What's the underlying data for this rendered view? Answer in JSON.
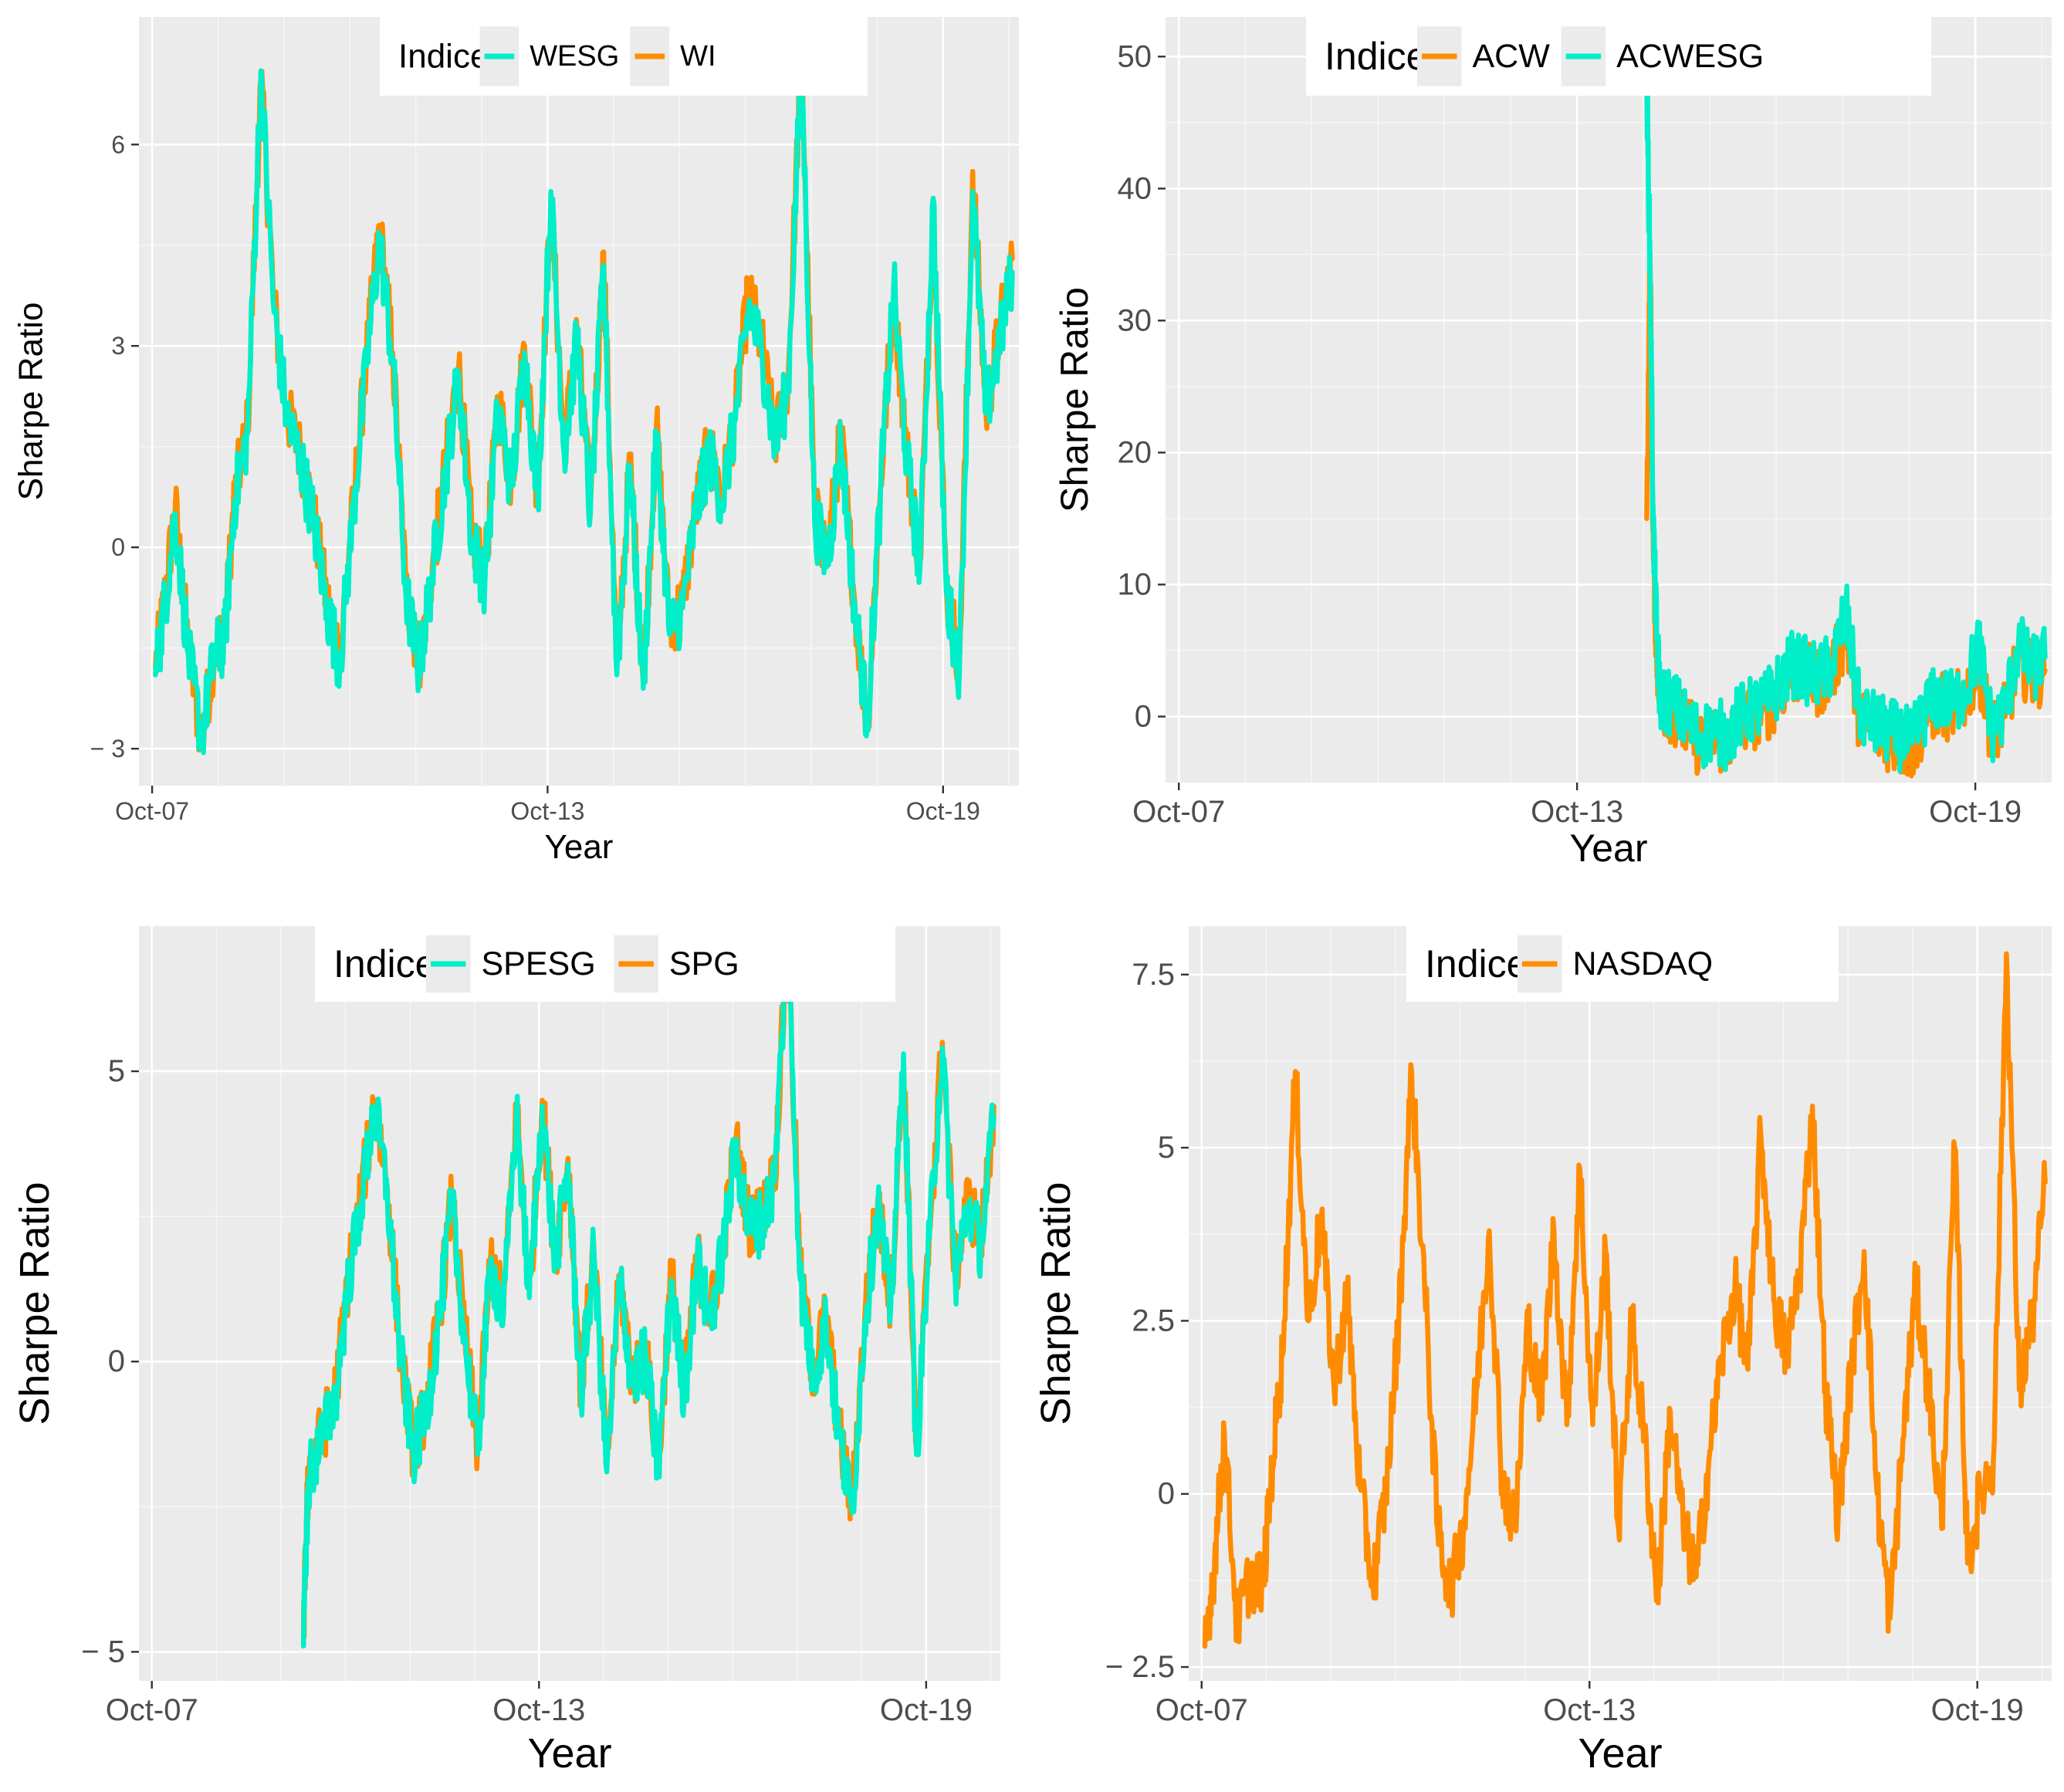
{
  "colors": {
    "orange": "#FF8C00",
    "cyan": "#00EEC8"
  },
  "chart_data": [
    {
      "id": "wi-wesg",
      "type": "line",
      "xlabel": "Year",
      "ylabel": "Sharpe Ratio",
      "xlim": [
        2007.55,
        2020.9
      ],
      "ylim": [
        -3.55,
        7.9
      ],
      "x_ticks": [
        {
          "value": 2007.75,
          "label": "Oct-07"
        },
        {
          "value": 2013.75,
          "label": "Oct-13"
        },
        {
          "value": 2019.75,
          "label": "Oct-19"
        }
      ],
      "y_ticks": [
        {
          "value": -3,
          "label": "− 3"
        },
        {
          "value": 0,
          "label": "0"
        },
        {
          "value": 3,
          "label": "3"
        },
        {
          "value": 6,
          "label": "6"
        }
      ],
      "legend": {
        "title": "Indices",
        "position": "top-center",
        "entries": [
          {
            "name": "WESG",
            "color": "#00EEC8"
          },
          {
            "name": "WI",
            "color": "#FF8C00"
          }
        ]
      },
      "series": [
        {
          "name": "WI",
          "color": "#FF8C00",
          "x": [
            2007.8,
            2007.95,
            2008.1,
            2008.3,
            2008.5,
            2008.7,
            2008.85,
            2009.0,
            2009.2,
            2009.4,
            2009.6,
            2009.8,
            2010.0,
            2010.2,
            2010.4,
            2010.6,
            2010.8,
            2011.0,
            2011.2,
            2011.4,
            2011.6,
            2011.8,
            2012.0,
            2012.2,
            2012.4,
            2012.6,
            2012.8,
            2013.0,
            2013.2,
            2013.4,
            2013.6,
            2013.8,
            2014.0,
            2014.2,
            2014.4,
            2014.6,
            2014.8,
            2015.0,
            2015.2,
            2015.4,
            2015.6,
            2015.8,
            2016.0,
            2016.2,
            2016.4,
            2016.6,
            2016.8,
            2017.0,
            2017.2,
            2017.4,
            2017.6,
            2017.8,
            2018.0,
            2018.2,
            2018.4,
            2018.6,
            2018.8,
            2019.0,
            2019.2,
            2019.4,
            2019.6,
            2019.8,
            2020.0,
            2020.2,
            2020.4,
            2020.6,
            2020.8
          ],
          "values": [
            -1.8,
            -0.7,
            0.6,
            -1.5,
            -2.9,
            -1.5,
            -1.3,
            0.8,
            1.8,
            7.0,
            3.6,
            2.0,
            1.4,
            0.5,
            -0.8,
            -1.6,
            0.6,
            2.8,
            4.8,
            2.9,
            -0.6,
            -1.7,
            -0.3,
            1.2,
            2.7,
            0.2,
            -0.4,
            2.2,
            1.0,
            3.0,
            0.8,
            5.2,
            1.5,
            3.2,
            0.6,
            4.4,
            -1.8,
            1.3,
            -2.0,
            1.8,
            -1.2,
            -0.8,
            0.6,
            1.5,
            0.8,
            2.0,
            3.8,
            3.0,
            1.6,
            2.5,
            7.5,
            0.5,
            -0.1,
            1.7,
            -0.7,
            -2.7,
            0.9,
            3.8,
            1.4,
            -0.2,
            5.0,
            -0.6,
            -1.7,
            5.6,
            2.0,
            3.2,
            4.3
          ]
        },
        {
          "name": "WESG",
          "color": "#00EEC8",
          "x": [
            2007.8,
            2007.95,
            2008.1,
            2008.3,
            2008.5,
            2008.7,
            2008.85,
            2009.0,
            2009.2,
            2009.4,
            2009.6,
            2009.8,
            2010.0,
            2010.2,
            2010.4,
            2010.6,
            2010.8,
            2011.0,
            2011.2,
            2011.4,
            2011.6,
            2011.8,
            2012.0,
            2012.2,
            2012.4,
            2012.6,
            2012.8,
            2013.0,
            2013.2,
            2013.4,
            2013.6,
            2013.8,
            2014.0,
            2014.2,
            2014.4,
            2014.6,
            2014.8,
            2015.0,
            2015.2,
            2015.4,
            2015.6,
            2015.8,
            2016.0,
            2016.2,
            2016.4,
            2016.6,
            2016.8,
            2017.0,
            2017.2,
            2017.4,
            2017.6,
            2017.8,
            2018.0,
            2018.2,
            2018.4,
            2018.6,
            2018.8,
            2019.0,
            2019.2,
            2019.4,
            2019.6,
            2019.8,
            2020.0,
            2020.2,
            2020.4,
            2020.6,
            2020.8
          ],
          "values": [
            -1.9,
            -0.8,
            0.5,
            -1.6,
            -2.8,
            -1.6,
            -1.4,
            0.7,
            1.7,
            7.1,
            3.5,
            1.9,
            1.3,
            0.4,
            -0.9,
            -1.7,
            0.5,
            2.7,
            4.6,
            2.8,
            -0.7,
            -1.8,
            -0.4,
            1.1,
            2.6,
            0.1,
            -0.5,
            2.1,
            0.9,
            2.9,
            0.7,
            5.3,
            1.4,
            3.1,
            0.5,
            4.2,
            -1.9,
            1.2,
            -2.1,
            1.7,
            -1.3,
            -0.9,
            0.5,
            1.4,
            0.7,
            1.9,
            3.6,
            2.9,
            1.5,
            2.4,
            7.3,
            0.4,
            -0.2,
            1.6,
            -0.8,
            -2.6,
            0.8,
            3.9,
            1.3,
            -0.3,
            5.2,
            -0.7,
            -1.8,
            5.3,
            2.0,
            3.0,
            4.1
          ]
        }
      ]
    },
    {
      "id": "acw-acwesg",
      "type": "line",
      "xlabel": "Year",
      "ylabel": "Sharpe Ratio",
      "xlim": [
        2007.55,
        2020.9
      ],
      "ylim": [
        -5,
        53
      ],
      "x_ticks": [
        {
          "value": 2007.75,
          "label": "Oct-07"
        },
        {
          "value": 2013.75,
          "label": "Oct-13"
        },
        {
          "value": 2019.75,
          "label": "Oct-19"
        }
      ],
      "y_ticks": [
        {
          "value": 0,
          "label": "0"
        },
        {
          "value": 10,
          "label": "10"
        },
        {
          "value": 20,
          "label": "20"
        },
        {
          "value": 30,
          "label": "30"
        },
        {
          "value": 40,
          "label": "40"
        },
        {
          "value": 50,
          "label": "50"
        }
      ],
      "legend": {
        "title": "Indices",
        "position": "top-center",
        "entries": [
          {
            "name": "ACW",
            "color": "#FF8C00"
          },
          {
            "name": "ACWESG",
            "color": "#00EEC8"
          }
        ]
      },
      "series": [
        {
          "name": "ACW",
          "color": "#FF8C00",
          "x": [
            2014.8,
            2014.85,
            2014.9,
            2014.95,
            2015.0,
            2015.2,
            2015.4,
            2015.6,
            2015.8,
            2016.0,
            2016.2,
            2016.4,
            2016.6,
            2016.8,
            2017.0,
            2017.2,
            2017.4,
            2017.6,
            2017.8,
            2018.0,
            2018.2,
            2018.4,
            2018.6,
            2018.8,
            2019.0,
            2019.2,
            2019.4,
            2019.6,
            2019.8,
            2020.0,
            2020.2,
            2020.4,
            2020.6,
            2020.8
          ],
          "values": [
            15,
            35,
            12,
            5,
            1,
            0.5,
            -1,
            -2,
            -1.5,
            -2,
            -0.5,
            0,
            0.5,
            2,
            3.5,
            3,
            2.5,
            3.5,
            6.5,
            0,
            -1,
            -1.5,
            -2,
            -2.5,
            0,
            1,
            0.5,
            1.5,
            4,
            -1.5,
            0,
            4.5,
            3,
            3.5
          ]
        },
        {
          "name": "ACWESG",
          "color": "#00EEC8",
          "x": [
            2014.8,
            2014.85,
            2014.9,
            2014.95,
            2015.0,
            2015.2,
            2015.4,
            2015.6,
            2015.8,
            2016.0,
            2016.2,
            2016.4,
            2016.6,
            2016.8,
            2017.0,
            2017.2,
            2017.4,
            2017.6,
            2017.8,
            2018.0,
            2018.2,
            2018.4,
            2018.6,
            2018.8,
            2019.0,
            2019.2,
            2019.4,
            2019.6,
            2019.8,
            2020.0,
            2020.2,
            2020.4,
            2020.6,
            2020.8
          ],
          "values": [
            48,
            34,
            14,
            6,
            1.5,
            1,
            -0.5,
            -1.5,
            -1,
            -1.5,
            0,
            0.5,
            1,
            2.5,
            4,
            3.5,
            3,
            4,
            8,
            0.5,
            -0.5,
            -1,
            -1.5,
            -2,
            0.5,
            1.5,
            1,
            2,
            5.5,
            -1,
            0.5,
            5.5,
            3.5,
            4.5
          ]
        }
      ]
    },
    {
      "id": "spg-spesg",
      "type": "line",
      "xlabel": "Year",
      "ylabel": "Sharpe Ratio",
      "xlim": [
        2007.55,
        2020.9
      ],
      "ylim": [
        -5.5,
        7.5
      ],
      "x_ticks": [
        {
          "value": 2007.75,
          "label": "Oct-07"
        },
        {
          "value": 2013.75,
          "label": "Oct-13"
        },
        {
          "value": 2019.75,
          "label": "Oct-19"
        }
      ],
      "y_ticks": [
        {
          "value": -5,
          "label": "− 5"
        },
        {
          "value": 0,
          "label": "0"
        },
        {
          "value": 5,
          "label": "5"
        }
      ],
      "legend": {
        "title": "Indices",
        "position": "top-center",
        "entries": [
          {
            "name": "SPESG",
            "color": "#00EEC8"
          },
          {
            "name": "SPG",
            "color": "#FF8C00"
          }
        ]
      },
      "series": [
        {
          "name": "SPG",
          "color": "#FF8C00",
          "x": [
            2010.1,
            2010.15,
            2010.2,
            2010.4,
            2010.6,
            2010.8,
            2011.0,
            2011.2,
            2011.4,
            2011.6,
            2011.8,
            2012.0,
            2012.2,
            2012.4,
            2012.6,
            2012.8,
            2013.0,
            2013.2,
            2013.4,
            2013.6,
            2013.8,
            2014.0,
            2014.2,
            2014.4,
            2014.6,
            2014.8,
            2015.0,
            2015.2,
            2015.4,
            2015.6,
            2015.8,
            2016.0,
            2016.2,
            2016.4,
            2016.6,
            2016.8,
            2017.0,
            2017.2,
            2017.4,
            2017.6,
            2017.8,
            2018.0,
            2018.2,
            2018.4,
            2018.6,
            2018.8,
            2019.0,
            2019.2,
            2019.4,
            2019.6,
            2019.8,
            2020.0,
            2020.2,
            2020.4,
            2020.6,
            2020.8
          ],
          "values": [
            -4.7,
            -2.6,
            -1.8,
            -1.2,
            -0.5,
            1.5,
            2.9,
            4.5,
            3.0,
            0.2,
            -1.5,
            -0.8,
            0.8,
            2.8,
            0.5,
            -1.5,
            1.8,
            0.9,
            4.4,
            1.2,
            4.5,
            1.8,
            3.5,
            -0.5,
            2.0,
            -1.8,
            1.5,
            -0.3,
            0.2,
            -1.8,
            1.5,
            -0.5,
            1.8,
            0.8,
            2.0,
            3.8,
            2.4,
            2.5,
            3.2,
            7.3,
            1.5,
            -0.2,
            0.8,
            -1.2,
            -2.5,
            0.8,
            2.8,
            1.0,
            5.2,
            -1.5,
            2.2,
            5.5,
            1.5,
            2.8,
            2.1,
            4.4
          ]
        },
        {
          "name": "SPESG",
          "color": "#00EEC8",
          "x": [
            2010.1,
            2010.15,
            2010.2,
            2010.4,
            2010.6,
            2010.8,
            2011.0,
            2011.2,
            2011.4,
            2011.6,
            2011.8,
            2012.0,
            2012.2,
            2012.4,
            2012.6,
            2012.8,
            2013.0,
            2013.2,
            2013.4,
            2013.6,
            2013.8,
            2014.0,
            2014.2,
            2014.4,
            2014.6,
            2014.8,
            2015.0,
            2015.2,
            2015.4,
            2015.6,
            2015.8,
            2016.0,
            2016.2,
            2016.4,
            2016.6,
            2016.8,
            2017.0,
            2017.2,
            2017.4,
            2017.6,
            2017.8,
            2018.0,
            2018.2,
            2018.4,
            2018.6,
            2018.8,
            2019.0,
            2019.2,
            2019.4,
            2019.6,
            2019.8,
            2020.0,
            2020.2,
            2020.4,
            2020.6,
            2020.8
          ],
          "values": [
            -4.9,
            -2.8,
            -1.9,
            -1.3,
            -0.6,
            1.4,
            2.8,
            4.4,
            2.9,
            0.1,
            -1.6,
            -0.9,
            0.7,
            2.7,
            0.4,
            -1.6,
            1.7,
            0.8,
            4.3,
            1.1,
            4.4,
            1.7,
            3.4,
            -0.6,
            1.9,
            -1.9,
            1.4,
            -0.4,
            0.1,
            -1.9,
            1.4,
            -0.6,
            1.7,
            0.7,
            1.9,
            3.7,
            2.3,
            2.4,
            3.1,
            7.4,
            1.4,
            -0.3,
            0.7,
            -1.3,
            -2.6,
            0.7,
            2.7,
            0.9,
            5.3,
            -1.6,
            2.1,
            5.4,
            1.4,
            2.7,
            2.0,
            4.2
          ]
        }
      ]
    },
    {
      "id": "nasdaq",
      "type": "line",
      "xlabel": "Year",
      "ylabel": "Sharpe Ratio",
      "xlim": [
        2007.55,
        2020.9
      ],
      "ylim": [
        -2.7,
        8.2
      ],
      "x_ticks": [
        {
          "value": 2007.75,
          "label": "Oct-07"
        },
        {
          "value": 2013.75,
          "label": "Oct-13"
        },
        {
          "value": 2019.75,
          "label": "Oct-19"
        }
      ],
      "y_ticks": [
        {
          "value": -2.5,
          "label": "− 2.5"
        },
        {
          "value": 0,
          "label": "0"
        },
        {
          "value": 2.5,
          "label": "2.5"
        },
        {
          "value": 5,
          "label": "5"
        },
        {
          "value": 7.5,
          "label": "7.5"
        }
      ],
      "legend": {
        "title": "Indices",
        "position": "top-center",
        "entries": [
          {
            "name": "NASDAQ",
            "color": "#FF8C00"
          }
        ]
      },
      "series": [
        {
          "name": "NASDAQ",
          "color": "#FF8C00",
          "x": [
            2007.8,
            2007.95,
            2008.1,
            2008.3,
            2008.5,
            2008.7,
            2008.85,
            2009.0,
            2009.2,
            2009.4,
            2009.6,
            2009.8,
            2010.0,
            2010.2,
            2010.4,
            2010.6,
            2010.8,
            2011.0,
            2011.2,
            2011.4,
            2011.6,
            2011.8,
            2012.0,
            2012.2,
            2012.4,
            2012.6,
            2012.8,
            2013.0,
            2013.2,
            2013.4,
            2013.6,
            2013.8,
            2014.0,
            2014.2,
            2014.4,
            2014.6,
            2014.8,
            2015.0,
            2015.2,
            2015.4,
            2015.6,
            2015.8,
            2016.0,
            2016.2,
            2016.4,
            2016.6,
            2016.8,
            2017.0,
            2017.2,
            2017.4,
            2017.6,
            2017.8,
            2018.0,
            2018.2,
            2018.4,
            2018.6,
            2018.8,
            2019.0,
            2019.2,
            2019.4,
            2019.6,
            2019.8,
            2020.0,
            2020.2,
            2020.4,
            2020.6,
            2020.8
          ],
          "values": [
            -2.2,
            -1.0,
            0.9,
            -1.9,
            -1.2,
            -1.3,
            0.5,
            2.0,
            6.1,
            2.5,
            4.0,
            1.5,
            2.9,
            0.1,
            -1.3,
            0.0,
            2.5,
            6.1,
            3.0,
            -0.5,
            -1.4,
            -0.5,
            1.5,
            3.8,
            0.2,
            -0.5,
            2.5,
            1.2,
            3.8,
            1.0,
            4.7,
            1.0,
            3.5,
            -0.5,
            2.5,
            0.8,
            -1.5,
            1.2,
            -0.5,
            -1.2,
            0.5,
            2.0,
            3.0,
            1.8,
            5.2,
            2.8,
            2.0,
            3.2,
            5.6,
            1.5,
            -0.3,
            1.8,
            3.5,
            0.0,
            -1.8,
            0.8,
            3.0,
            1.5,
            -0.5,
            5.0,
            -1.0,
            0.0,
            0.5,
            7.8,
            1.5,
            2.5,
            4.5
          ]
        }
      ]
    }
  ]
}
